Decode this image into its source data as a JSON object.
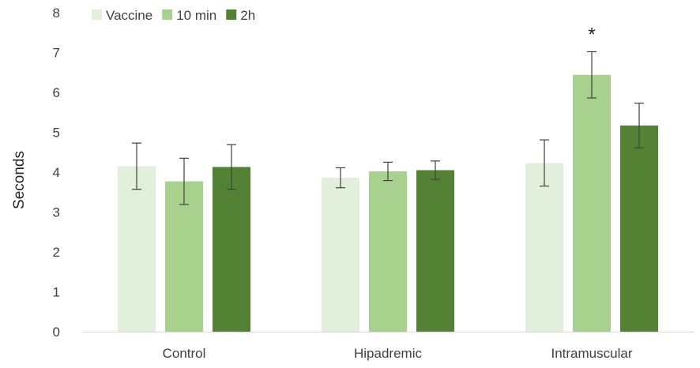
{
  "chart_data": {
    "type": "bar",
    "categories": [
      "Control",
      "Hipadremic",
      "Intramuscular"
    ],
    "series": [
      {
        "name": "Vaccine",
        "color": "#e2efda",
        "values": [
          4.15,
          3.86,
          4.23
        ],
        "errors": [
          0.58,
          0.25,
          0.58
        ]
      },
      {
        "name": "10 min",
        "color": "#a9d18e",
        "values": [
          3.77,
          4.02,
          6.44
        ],
        "errors": [
          0.58,
          0.23,
          0.58
        ]
      },
      {
        "name": "2h",
        "color": "#548235",
        "values": [
          4.13,
          4.05,
          5.17
        ],
        "errors": [
          0.56,
          0.23,
          0.56
        ]
      }
    ],
    "title": "",
    "xlabel": "",
    "ylabel": "Seconds",
    "ylim": [
      0,
      8
    ],
    "yticks": [
      0,
      1,
      2,
      3,
      4,
      5,
      6,
      7,
      8
    ],
    "grid": false,
    "legend": "top-left",
    "annotations": [
      {
        "text": "*",
        "category": "Intramuscular",
        "series": "10 min"
      }
    ]
  }
}
